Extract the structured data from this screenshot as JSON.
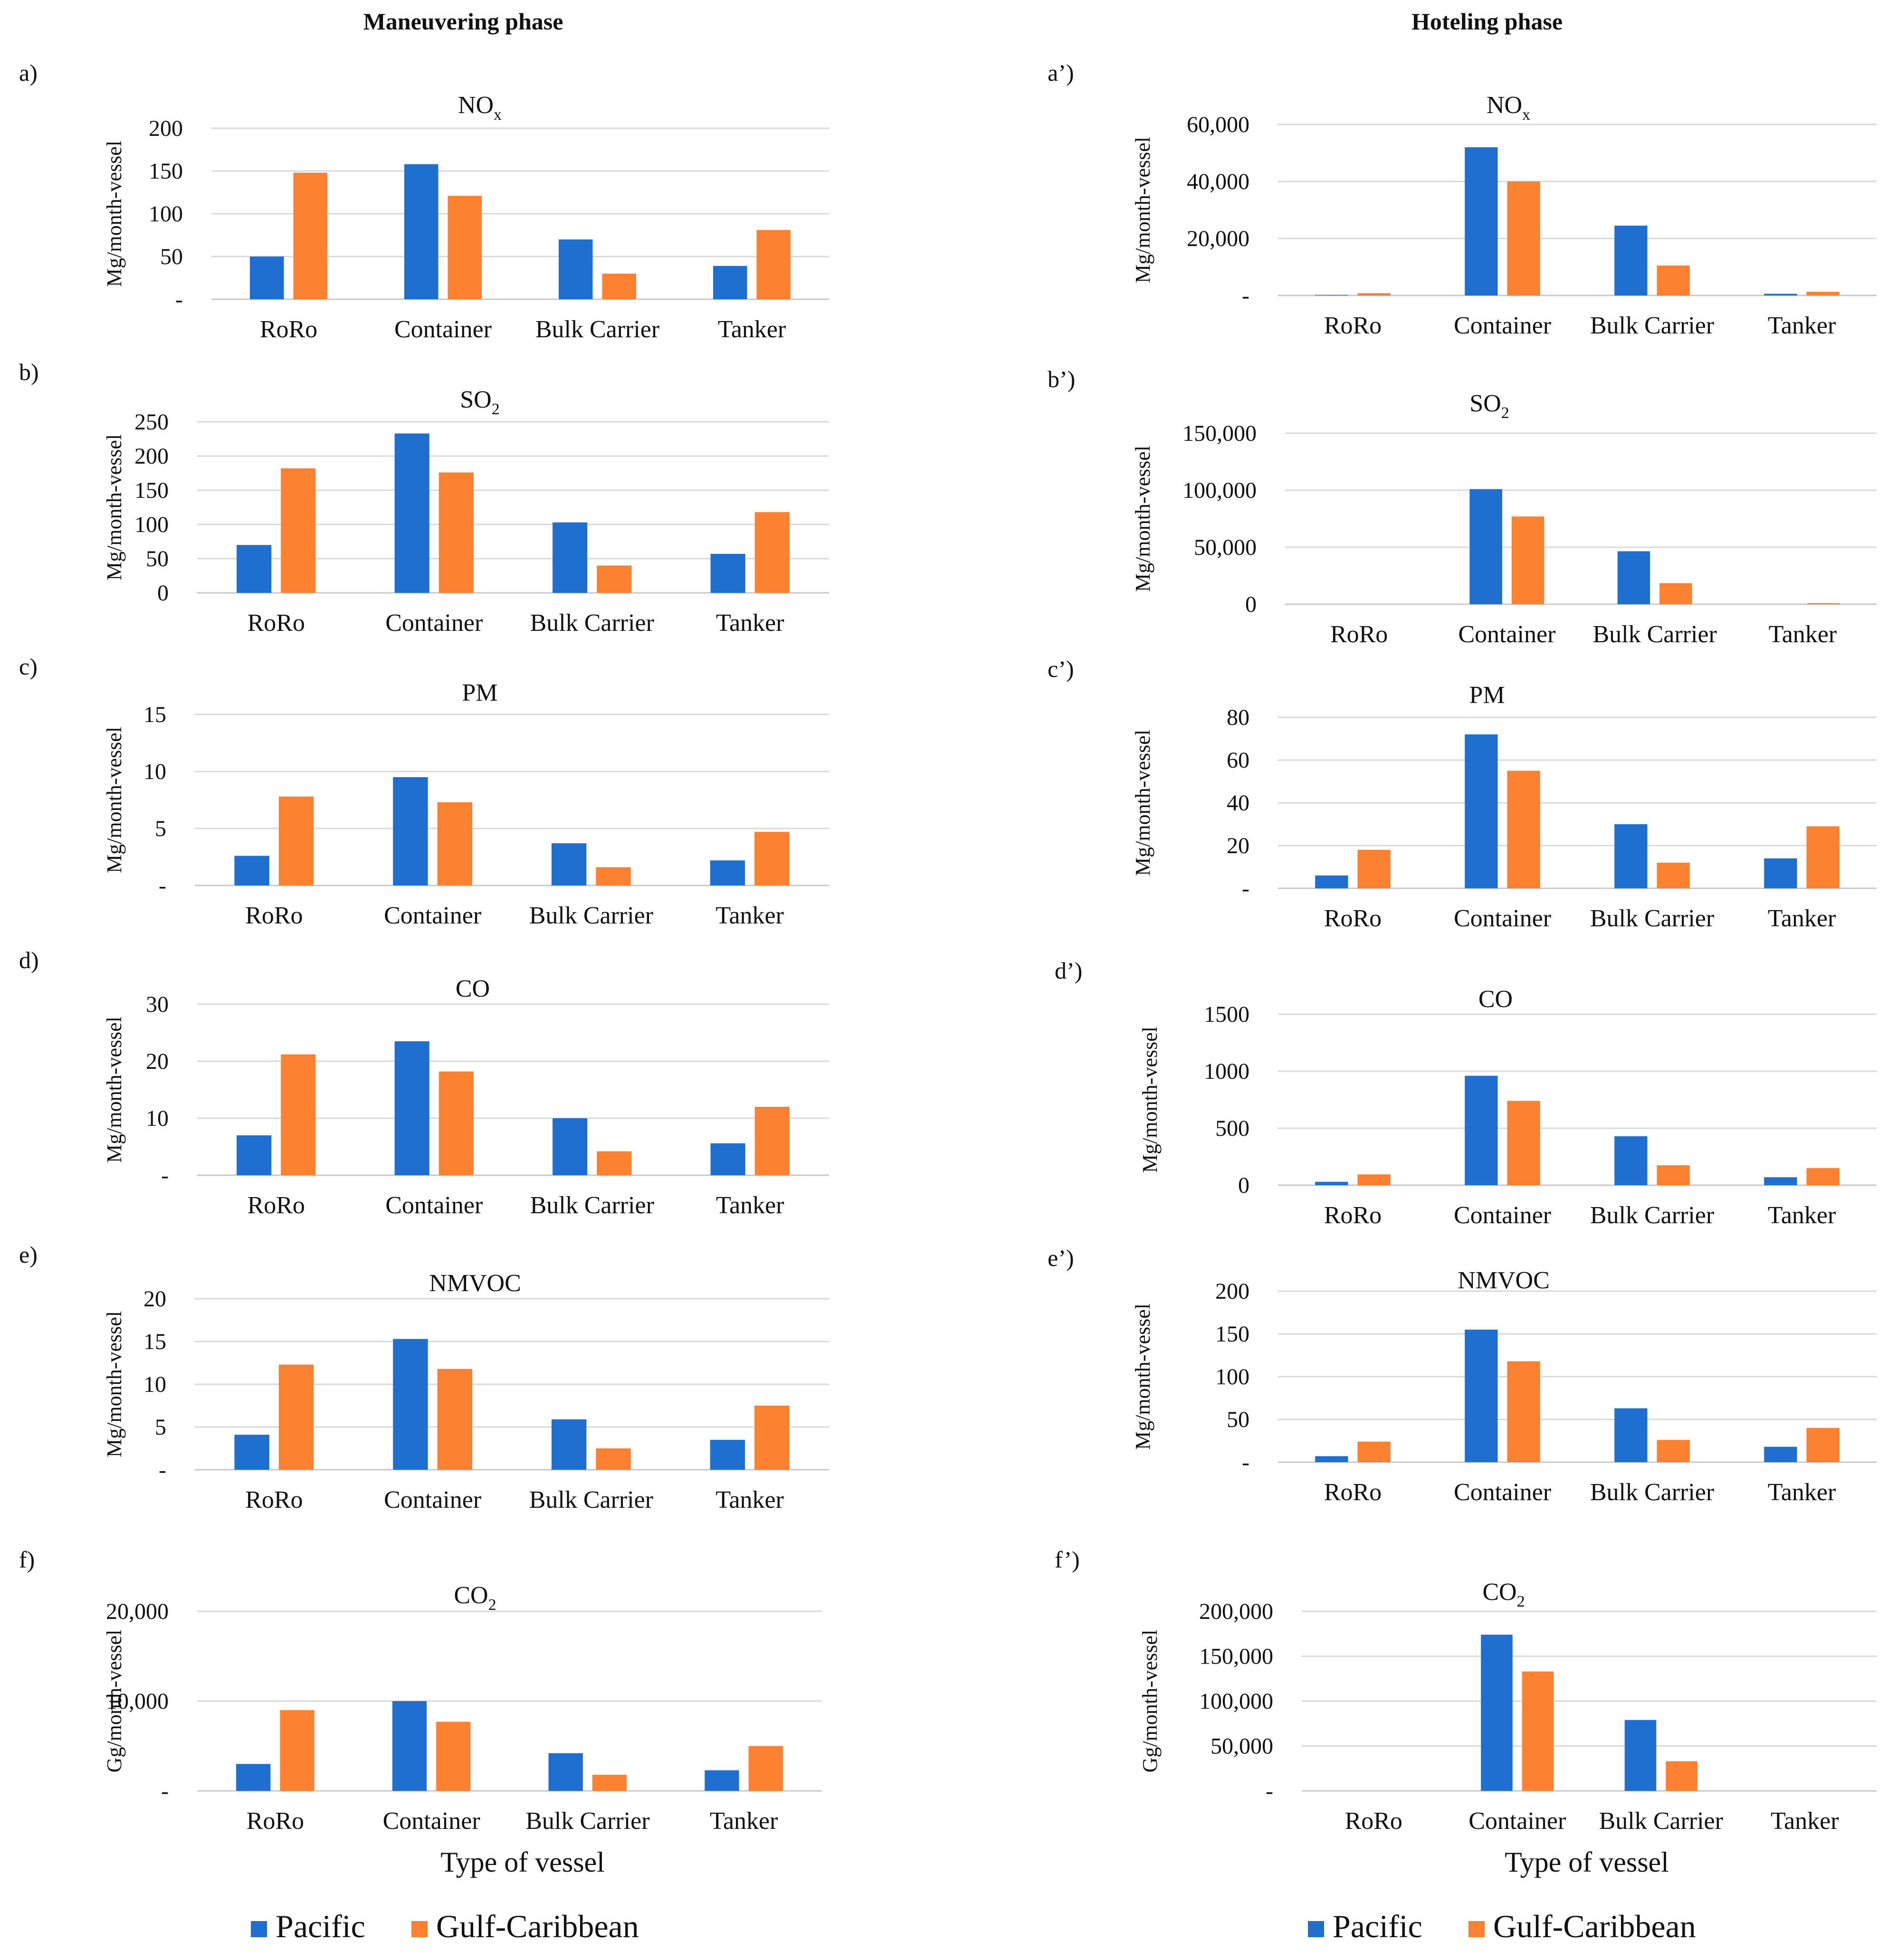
{
  "phase_titles": {
    "left": "Maneuvering phase",
    "right": "Hoteling phase"
  },
  "colors": {
    "pacific": "#1f6fd0",
    "gulf": "#fb8131",
    "grid": "#d9d9d9",
    "text": "#111111"
  },
  "legend": [
    {
      "label": "Pacific",
      "color": "#1f6fd0"
    },
    {
      "label": "Gulf-Caribbean",
      "color": "#fb8131"
    }
  ],
  "xlabel": "Type of vessel",
  "chart_data": [
    {
      "panel": "a)",
      "type": "bar",
      "title": "NO",
      "title_sub": "x",
      "ylabel": "Mg/month-vessel",
      "categories": [
        "RoRo",
        "Container",
        "Bulk Carrier",
        "Tanker"
      ],
      "yticks": [
        "-",
        "50",
        "100",
        "150",
        "200"
      ],
      "ylim": [
        0,
        200
      ],
      "series": [
        {
          "name": "Pacific",
          "values": [
            50,
            158,
            70,
            39
          ]
        },
        {
          "name": "Gulf-Caribbean",
          "values": [
            148,
            121,
            30,
            81
          ]
        }
      ]
    },
    {
      "panel": "a’)",
      "type": "bar",
      "title": "NO",
      "title_sub": "x",
      "ylabel": "Mg/month-vessel",
      "categories": [
        "RoRo",
        "Container",
        "Bulk Carrier",
        "Tanker"
      ],
      "yticks": [
        "-",
        "20,000",
        "40,000",
        "60,000"
      ],
      "ylim": [
        0,
        60000
      ],
      "series": [
        {
          "name": "Pacific",
          "values": [
            200,
            52000,
            24500,
            600
          ]
        },
        {
          "name": "Gulf-Caribbean",
          "values": [
            800,
            40000,
            10500,
            1300
          ]
        }
      ]
    },
    {
      "panel": "b)",
      "type": "bar",
      "title": "SO",
      "title_sub": "2",
      "ylabel": "Mg/month-vessel",
      "categories": [
        "RoRo",
        "Container",
        "Bulk Carrier",
        "Tanker"
      ],
      "yticks": [
        "0",
        "50",
        "100",
        "150",
        "200",
        "250"
      ],
      "ylim": [
        0,
        250
      ],
      "series": [
        {
          "name": "Pacific",
          "values": [
            70,
            233,
            103,
            57
          ]
        },
        {
          "name": "Gulf-Caribbean",
          "values": [
            182,
            176,
            40,
            118
          ]
        }
      ]
    },
    {
      "panel": "b’)",
      "type": "bar",
      "title": "SO",
      "title_sub": "2",
      "ylabel": "Mg/month-vessel",
      "categories": [
        "RoRo",
        "Container",
        "Bulk Carrier",
        "Tanker"
      ],
      "yticks": [
        "0",
        "50,000",
        "100,000",
        "150,000"
      ],
      "ylim": [
        0,
        150000
      ],
      "series": [
        {
          "name": "Pacific",
          "values": [
            0,
            101000,
            46500,
            0
          ]
        },
        {
          "name": "Gulf-Caribbean",
          "values": [
            0,
            77000,
            18500,
            1000
          ]
        }
      ]
    },
    {
      "panel": "c)",
      "type": "bar",
      "title": "PM",
      "title_sub": "",
      "ylabel": "Mg/month-vessel",
      "categories": [
        "RoRo",
        "Container",
        "Bulk Carrier",
        "Tanker"
      ],
      "yticks": [
        "-",
        "5",
        "10",
        "15"
      ],
      "ylim": [
        0,
        15
      ],
      "series": [
        {
          "name": "Pacific",
          "values": [
            2.6,
            9.5,
            3.7,
            2.2
          ]
        },
        {
          "name": "Gulf-Caribbean",
          "values": [
            7.8,
            7.3,
            1.6,
            4.7
          ]
        }
      ]
    },
    {
      "panel": "c’)",
      "type": "bar",
      "title": "PM",
      "title_sub": "",
      "ylabel": "Mg/month-vessel",
      "categories": [
        "RoRo",
        "Container",
        "Bulk Carrier",
        "Tanker"
      ],
      "yticks": [
        "-",
        "20",
        "40",
        "60",
        "80"
      ],
      "ylim": [
        0,
        80
      ],
      "series": [
        {
          "name": "Pacific",
          "values": [
            6,
            72,
            30,
            14
          ]
        },
        {
          "name": "Gulf-Caribbean",
          "values": [
            18,
            55,
            12,
            29
          ]
        }
      ]
    },
    {
      "panel": "d)",
      "type": "bar",
      "title": "CO",
      "title_sub": "",
      "ylabel": "Mg/month-vessel",
      "categories": [
        "RoRo",
        "Container",
        "Bulk Carrier",
        "Tanker"
      ],
      "yticks": [
        "-",
        "10",
        "20",
        "30"
      ],
      "ylim": [
        0,
        30
      ],
      "series": [
        {
          "name": "Pacific",
          "values": [
            7,
            23.5,
            10,
            5.6
          ]
        },
        {
          "name": "Gulf-Caribbean",
          "values": [
            21.2,
            18.2,
            4.2,
            12
          ]
        }
      ]
    },
    {
      "panel": "d’)",
      "type": "bar",
      "title": "CO",
      "title_sub": "",
      "ylabel": "Mg/month-vessel",
      "categories": [
        "RoRo",
        "Container",
        "Bulk Carrier",
        "Tanker"
      ],
      "yticks": [
        "0",
        "500",
        "1000",
        "1500"
      ],
      "ylim": [
        0,
        1500
      ],
      "series": [
        {
          "name": "Pacific",
          "values": [
            30,
            960,
            430,
            70
          ]
        },
        {
          "name": "Gulf-Caribbean",
          "values": [
            95,
            740,
            175,
            150
          ]
        }
      ]
    },
    {
      "panel": "e)",
      "type": "bar",
      "title": "NMVOC",
      "title_sub": "",
      "ylabel": "Mg/month-vessel",
      "categories": [
        "RoRo",
        "Container",
        "Bulk Carrier",
        "Tanker"
      ],
      "yticks": [
        "-",
        "5",
        "10",
        "15",
        "20"
      ],
      "ylim": [
        0,
        20
      ],
      "series": [
        {
          "name": "Pacific",
          "values": [
            4.1,
            15.3,
            5.9,
            3.5
          ]
        },
        {
          "name": "Gulf-Caribbean",
          "values": [
            12.3,
            11.8,
            2.5,
            7.5
          ]
        }
      ]
    },
    {
      "panel": "e’)",
      "type": "bar",
      "title": "NMVOC",
      "title_sub": "",
      "ylabel": "Mg/month-vessel",
      "categories": [
        "RoRo",
        "Container",
        "Bulk Carrier",
        "Tanker"
      ],
      "yticks": [
        "-",
        "50",
        "100",
        "150",
        "200"
      ],
      "ylim": [
        0,
        200
      ],
      "series": [
        {
          "name": "Pacific",
          "values": [
            7,
            155,
            63,
            18
          ]
        },
        {
          "name": "Gulf-Caribbean",
          "values": [
            24,
            118,
            26,
            40
          ]
        }
      ]
    },
    {
      "panel": "f)",
      "type": "bar",
      "title": "CO",
      "title_sub": "2",
      "ylabel": "Gg/month-vessel",
      "categories": [
        "RoRo",
        "Container",
        "Bulk Carrier",
        "Tanker"
      ],
      "yticks": [
        "-",
        "10,000",
        "20,000"
      ],
      "ylim": [
        0,
        20000
      ],
      "series": [
        {
          "name": "Pacific",
          "values": [
            3000,
            10000,
            4200,
            2300
          ]
        },
        {
          "name": "Gulf-Caribbean",
          "values": [
            9000,
            7700,
            1800,
            5000
          ]
        }
      ]
    },
    {
      "panel": "f’)",
      "type": "bar",
      "title": "CO",
      "title_sub": "2",
      "ylabel": "Gg/month-vessel",
      "categories": [
        "RoRo",
        "Container",
        "Bulk Carrier",
        "Tanker"
      ],
      "yticks": [
        "-",
        "50,000",
        "100,000",
        "150,000",
        "200,000"
      ],
      "ylim": [
        0,
        200000
      ],
      "series": [
        {
          "name": "Pacific",
          "values": [
            0,
            174000,
            79000,
            0
          ]
        },
        {
          "name": "Gulf-Caribbean",
          "values": [
            0,
            133000,
            33000,
            0
          ]
        }
      ]
    }
  ]
}
